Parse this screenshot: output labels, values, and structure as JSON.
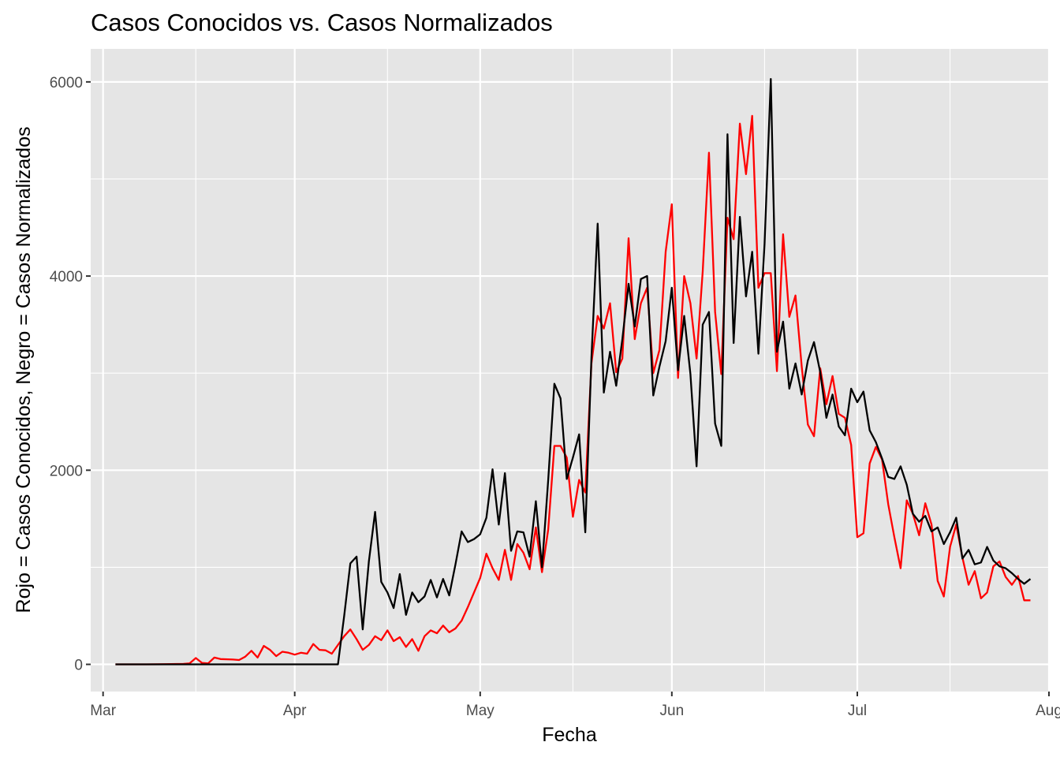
{
  "chart_data": {
    "type": "line",
    "title": "Casos Conocidos vs. Casos Normalizados",
    "xlabel": "Fecha",
    "ylabel": "Rojo = Casos Conocidos, Negro = Casos Normalizados",
    "x_range": [
      "2020-02-28",
      "2020-08-01"
    ],
    "ylim": [
      -280,
      6340
    ],
    "x_ticks": [
      {
        "date": "2020-03-01",
        "label": "Mar"
      },
      {
        "date": "2020-04-01",
        "label": "Apr"
      },
      {
        "date": "2020-05-01",
        "label": "May"
      },
      {
        "date": "2020-06-01",
        "label": "Jun"
      },
      {
        "date": "2020-07-01",
        "label": "Jul"
      },
      {
        "date": "2020-08-01",
        "label": "Aug"
      }
    ],
    "x_minor_ticks": [
      "2020-03-16",
      "2020-04-16",
      "2020-05-16",
      "2020-06-16",
      "2020-07-16"
    ],
    "y_ticks": [
      0,
      2000,
      4000,
      6000
    ],
    "y_minor_ticks": [
      1000,
      3000,
      5000
    ],
    "grid": true,
    "legend": "none",
    "colors": {
      "panel": "#e5e5e5",
      "grid": "#ffffff",
      "red": "#ff0000",
      "black": "#000000"
    },
    "series": [
      {
        "color": "#ff0000",
        "points": [
          [
            "2020-03-03",
            0
          ],
          [
            "2020-03-08",
            0
          ],
          [
            "2020-03-11",
            2
          ],
          [
            "2020-03-14",
            5
          ],
          [
            "2020-03-15",
            10
          ],
          [
            "2020-03-16",
            65
          ],
          [
            "2020-03-17",
            15
          ],
          [
            "2020-03-18",
            10
          ],
          [
            "2020-03-19",
            70
          ],
          [
            "2020-03-20",
            55
          ],
          [
            "2020-03-22",
            50
          ],
          [
            "2020-03-23",
            45
          ],
          [
            "2020-03-24",
            80
          ],
          [
            "2020-03-25",
            140
          ],
          [
            "2020-03-26",
            70
          ],
          [
            "2020-03-27",
            190
          ],
          [
            "2020-03-28",
            150
          ],
          [
            "2020-03-29",
            85
          ],
          [
            "2020-03-30",
            130
          ],
          [
            "2020-03-31",
            120
          ],
          [
            "2020-04-01",
            100
          ],
          [
            "2020-04-02",
            120
          ],
          [
            "2020-04-03",
            110
          ],
          [
            "2020-04-04",
            210
          ],
          [
            "2020-04-05",
            150
          ],
          [
            "2020-04-06",
            145
          ],
          [
            "2020-04-07",
            110
          ],
          [
            "2020-04-08",
            200
          ],
          [
            "2020-04-09",
            290
          ],
          [
            "2020-04-10",
            360
          ],
          [
            "2020-04-11",
            260
          ],
          [
            "2020-04-12",
            150
          ],
          [
            "2020-04-13",
            200
          ],
          [
            "2020-04-14",
            290
          ],
          [
            "2020-04-15",
            250
          ],
          [
            "2020-04-16",
            350
          ],
          [
            "2020-04-17",
            240
          ],
          [
            "2020-04-18",
            280
          ],
          [
            "2020-04-19",
            180
          ],
          [
            "2020-04-20",
            260
          ],
          [
            "2020-04-21",
            140
          ],
          [
            "2020-04-22",
            290
          ],
          [
            "2020-04-23",
            350
          ],
          [
            "2020-04-24",
            320
          ],
          [
            "2020-04-25",
            400
          ],
          [
            "2020-04-26",
            330
          ],
          [
            "2020-04-27",
            370
          ],
          [
            "2020-04-28",
            450
          ],
          [
            "2020-04-29",
            590
          ],
          [
            "2020-04-30",
            740
          ],
          [
            "2020-05-01",
            890
          ],
          [
            "2020-05-02",
            1140
          ],
          [
            "2020-05-03",
            990
          ],
          [
            "2020-05-04",
            870
          ],
          [
            "2020-05-05",
            1180
          ],
          [
            "2020-05-06",
            870
          ],
          [
            "2020-05-07",
            1240
          ],
          [
            "2020-05-08",
            1150
          ],
          [
            "2020-05-09",
            980
          ],
          [
            "2020-05-10",
            1410
          ],
          [
            "2020-05-11",
            950
          ],
          [
            "2020-05-12",
            1390
          ],
          [
            "2020-05-13",
            2250
          ],
          [
            "2020-05-14",
            2250
          ],
          [
            "2020-05-15",
            2130
          ],
          [
            "2020-05-16",
            1520
          ],
          [
            "2020-05-17",
            1900
          ],
          [
            "2020-05-18",
            1770
          ],
          [
            "2020-05-19",
            3100
          ],
          [
            "2020-05-20",
            3590
          ],
          [
            "2020-05-21",
            3460
          ],
          [
            "2020-05-22",
            3720
          ],
          [
            "2020-05-23",
            3010
          ],
          [
            "2020-05-24",
            3150
          ],
          [
            "2020-05-25",
            4390
          ],
          [
            "2020-05-26",
            3350
          ],
          [
            "2020-05-27",
            3720
          ],
          [
            "2020-05-28",
            3880
          ],
          [
            "2020-05-29",
            3000
          ],
          [
            "2020-05-30",
            3240
          ],
          [
            "2020-05-31",
            4250
          ],
          [
            "2020-06-01",
            4740
          ],
          [
            "2020-06-02",
            2950
          ],
          [
            "2020-06-03",
            4000
          ],
          [
            "2020-06-04",
            3720
          ],
          [
            "2020-06-05",
            3150
          ],
          [
            "2020-06-06",
            4050
          ],
          [
            "2020-06-07",
            5270
          ],
          [
            "2020-06-08",
            3630
          ],
          [
            "2020-06-09",
            2990
          ],
          [
            "2020-06-10",
            4600
          ],
          [
            "2020-06-11",
            4380
          ],
          [
            "2020-06-12",
            5570
          ],
          [
            "2020-06-13",
            5050
          ],
          [
            "2020-06-14",
            5650
          ],
          [
            "2020-06-15",
            3880
          ],
          [
            "2020-06-16",
            4030
          ],
          [
            "2020-06-17",
            4030
          ],
          [
            "2020-06-18",
            3020
          ],
          [
            "2020-06-19",
            4430
          ],
          [
            "2020-06-20",
            3580
          ],
          [
            "2020-06-21",
            3800
          ],
          [
            "2020-06-22",
            3070
          ],
          [
            "2020-06-23",
            2470
          ],
          [
            "2020-06-24",
            2350
          ],
          [
            "2020-06-25",
            3050
          ],
          [
            "2020-06-26",
            2680
          ],
          [
            "2020-06-27",
            2970
          ],
          [
            "2020-06-28",
            2580
          ],
          [
            "2020-06-29",
            2540
          ],
          [
            "2020-06-30",
            2260
          ],
          [
            "2020-07-01",
            1310
          ],
          [
            "2020-07-02",
            1350
          ],
          [
            "2020-07-03",
            2070
          ],
          [
            "2020-07-04",
            2240
          ],
          [
            "2020-07-05",
            2110
          ],
          [
            "2020-07-06",
            1650
          ],
          [
            "2020-07-07",
            1310
          ],
          [
            "2020-07-08",
            990
          ],
          [
            "2020-07-09",
            1690
          ],
          [
            "2020-07-10",
            1550
          ],
          [
            "2020-07-11",
            1330
          ],
          [
            "2020-07-12",
            1660
          ],
          [
            "2020-07-13",
            1440
          ],
          [
            "2020-07-14",
            860
          ],
          [
            "2020-07-15",
            700
          ],
          [
            "2020-07-16",
            1210
          ],
          [
            "2020-07-17",
            1440
          ],
          [
            "2020-07-18",
            1100
          ],
          [
            "2020-07-19",
            820
          ],
          [
            "2020-07-20",
            960
          ],
          [
            "2020-07-21",
            680
          ],
          [
            "2020-07-22",
            740
          ],
          [
            "2020-07-23",
            1010
          ],
          [
            "2020-07-24",
            1060
          ],
          [
            "2020-07-25",
            900
          ],
          [
            "2020-07-26",
            820
          ],
          [
            "2020-07-27",
            910
          ],
          [
            "2020-07-28",
            660
          ],
          [
            "2020-07-29",
            660
          ]
        ]
      },
      {
        "color": "#000000",
        "points": [
          [
            "2020-03-03",
            0
          ],
          [
            "2020-04-08",
            0
          ],
          [
            "2020-04-09",
            500
          ],
          [
            "2020-04-10",
            1040
          ],
          [
            "2020-04-11",
            1110
          ],
          [
            "2020-04-12",
            360
          ],
          [
            "2020-04-13",
            1060
          ],
          [
            "2020-04-14",
            1570
          ],
          [
            "2020-04-15",
            850
          ],
          [
            "2020-04-16",
            740
          ],
          [
            "2020-04-17",
            580
          ],
          [
            "2020-04-18",
            930
          ],
          [
            "2020-04-19",
            510
          ],
          [
            "2020-04-20",
            740
          ],
          [
            "2020-04-21",
            640
          ],
          [
            "2020-04-22",
            700
          ],
          [
            "2020-04-23",
            870
          ],
          [
            "2020-04-24",
            690
          ],
          [
            "2020-04-25",
            880
          ],
          [
            "2020-04-26",
            710
          ],
          [
            "2020-04-27",
            1030
          ],
          [
            "2020-04-28",
            1370
          ],
          [
            "2020-04-29",
            1260
          ],
          [
            "2020-04-30",
            1290
          ],
          [
            "2020-05-01",
            1340
          ],
          [
            "2020-05-02",
            1510
          ],
          [
            "2020-05-03",
            2010
          ],
          [
            "2020-05-04",
            1440
          ],
          [
            "2020-05-05",
            1970
          ],
          [
            "2020-05-06",
            1170
          ],
          [
            "2020-05-07",
            1370
          ],
          [
            "2020-05-08",
            1360
          ],
          [
            "2020-05-09",
            1110
          ],
          [
            "2020-05-10",
            1680
          ],
          [
            "2020-05-11",
            1000
          ],
          [
            "2020-05-12",
            1900
          ],
          [
            "2020-05-13",
            2890
          ],
          [
            "2020-05-14",
            2740
          ],
          [
            "2020-05-15",
            1910
          ],
          [
            "2020-05-16",
            2130
          ],
          [
            "2020-05-17",
            2370
          ],
          [
            "2020-05-18",
            1360
          ],
          [
            "2020-05-19",
            3160
          ],
          [
            "2020-05-20",
            4540
          ],
          [
            "2020-05-21",
            2800
          ],
          [
            "2020-05-22",
            3220
          ],
          [
            "2020-05-23",
            2870
          ],
          [
            "2020-05-24",
            3350
          ],
          [
            "2020-05-25",
            3920
          ],
          [
            "2020-05-26",
            3480
          ],
          [
            "2020-05-27",
            3970
          ],
          [
            "2020-05-28",
            4000
          ],
          [
            "2020-05-29",
            2770
          ],
          [
            "2020-05-30",
            3070
          ],
          [
            "2020-05-31",
            3330
          ],
          [
            "2020-06-01",
            3880
          ],
          [
            "2020-06-02",
            3030
          ],
          [
            "2020-06-03",
            3590
          ],
          [
            "2020-06-04",
            2990
          ],
          [
            "2020-06-05",
            2040
          ],
          [
            "2020-06-06",
            3500
          ],
          [
            "2020-06-07",
            3630
          ],
          [
            "2020-06-08",
            2480
          ],
          [
            "2020-06-09",
            2250
          ],
          [
            "2020-06-10",
            5460
          ],
          [
            "2020-06-11",
            3310
          ],
          [
            "2020-06-12",
            4610
          ],
          [
            "2020-06-13",
            3790
          ],
          [
            "2020-06-14",
            4250
          ],
          [
            "2020-06-15",
            3200
          ],
          [
            "2020-06-16",
            4330
          ],
          [
            "2020-06-17",
            6030
          ],
          [
            "2020-06-18",
            3220
          ],
          [
            "2020-06-19",
            3530
          ],
          [
            "2020-06-20",
            2840
          ],
          [
            "2020-06-21",
            3100
          ],
          [
            "2020-06-22",
            2780
          ],
          [
            "2020-06-23",
            3130
          ],
          [
            "2020-06-24",
            3320
          ],
          [
            "2020-06-25",
            3010
          ],
          [
            "2020-06-26",
            2540
          ],
          [
            "2020-06-27",
            2780
          ],
          [
            "2020-06-28",
            2450
          ],
          [
            "2020-06-29",
            2360
          ],
          [
            "2020-06-30",
            2840
          ],
          [
            "2020-07-01",
            2700
          ],
          [
            "2020-07-02",
            2810
          ],
          [
            "2020-07-03",
            2410
          ],
          [
            "2020-07-04",
            2290
          ],
          [
            "2020-07-05",
            2120
          ],
          [
            "2020-07-06",
            1930
          ],
          [
            "2020-07-07",
            1910
          ],
          [
            "2020-07-08",
            2040
          ],
          [
            "2020-07-09",
            1850
          ],
          [
            "2020-07-10",
            1550
          ],
          [
            "2020-07-11",
            1470
          ],
          [
            "2020-07-12",
            1530
          ],
          [
            "2020-07-13",
            1370
          ],
          [
            "2020-07-14",
            1410
          ],
          [
            "2020-07-15",
            1240
          ],
          [
            "2020-07-16",
            1360
          ],
          [
            "2020-07-17",
            1510
          ],
          [
            "2020-07-18",
            1090
          ],
          [
            "2020-07-19",
            1180
          ],
          [
            "2020-07-20",
            1030
          ],
          [
            "2020-07-21",
            1050
          ],
          [
            "2020-07-22",
            1210
          ],
          [
            "2020-07-23",
            1070
          ],
          [
            "2020-07-24",
            1010
          ],
          [
            "2020-07-25",
            990
          ],
          [
            "2020-07-26",
            940
          ],
          [
            "2020-07-27",
            880
          ],
          [
            "2020-07-28",
            830
          ],
          [
            "2020-07-29",
            880
          ]
        ]
      }
    ]
  }
}
